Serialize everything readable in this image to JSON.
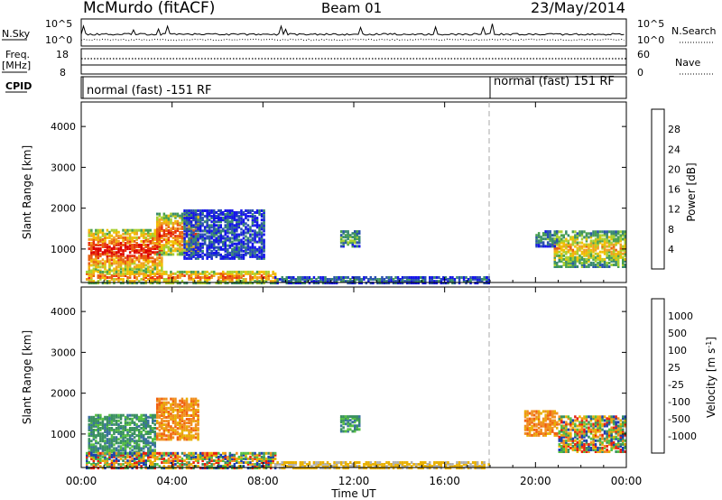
{
  "header": {
    "station": "McMurdo (fitACF)",
    "beam": "Beam 01",
    "date": "23/May/2014"
  },
  "top_panels": {
    "nsky_label": "N.Sky",
    "nsearch_label": "N.Search",
    "nsky_ticks": [
      "10^5",
      "10^0"
    ],
    "nsearch_ticks": [
      "10^5",
      "10^0"
    ],
    "freq_label": "Freq.",
    "freq_units": "[MHz]",
    "freq_ticks": [
      "18",
      "8"
    ],
    "nave_label": "Nave",
    "nave_ticks": [
      "60",
      "0"
    ],
    "cpid_label": "CPID",
    "cpid_segments": [
      {
        "text": "normal (fast) -151 RF",
        "start_hour": 0
      },
      {
        "text": "normal (fast) 151 RF",
        "start_hour": 18
      }
    ]
  },
  "x_axis": {
    "label": "Time UT",
    "ticks": [
      "00:00",
      "04:00",
      "08:00",
      "12:00",
      "16:00",
      "20:00",
      "00:00"
    ],
    "range_hours": [
      0,
      24
    ]
  },
  "chart_data": [
    {
      "type": "heatmap",
      "panel": "power",
      "ylabel": "Slant Range [km]",
      "yticks": [
        "1000",
        "2000",
        "3000",
        "4000"
      ],
      "ylim": [
        180,
        4600
      ],
      "colorbar_label": "Power [dB]",
      "colorbar_ticks": [
        "4",
        "8",
        "12",
        "16",
        "20",
        "24",
        "28"
      ],
      "colorbar_colors": [
        "#1515e8",
        "#2a50b0",
        "#3a8a70",
        "#4aa050",
        "#a8d030",
        "#f0c000",
        "#f0a020",
        "#e86010",
        "#e83010",
        "#dd0000"
      ],
      "regions": [
        {
          "t": [
            0.3,
            3.6
          ],
          "r": [
            500,
            1500
          ],
          "level": 0.85
        },
        {
          "t": [
            3.3,
            5.1
          ],
          "r": [
            900,
            1900
          ],
          "level": 0.75
        },
        {
          "t": [
            0.2,
            8.5
          ],
          "r": [
            200,
            500
          ],
          "level": 0.7
        },
        {
          "t": [
            11.4,
            12.2
          ],
          "r": [
            1100,
            1500
          ],
          "level": 0.35
        },
        {
          "t": [
            20.8,
            24
          ],
          "r": [
            600,
            1500
          ],
          "level": 0.55
        },
        {
          "t": [
            20.0,
            21.0
          ],
          "r": [
            1100,
            1500
          ],
          "level": 0.3
        },
        {
          "t": [
            4.5,
            8.0
          ],
          "r": [
            800,
            2000
          ],
          "level": 0.15
        },
        {
          "t": [
            8.5,
            18
          ],
          "r": [
            200,
            350
          ],
          "level": 0.2
        }
      ]
    },
    {
      "type": "heatmap",
      "panel": "velocity",
      "ylabel": "Slant Range [km]",
      "yticks": [
        "1000",
        "2000",
        "3000",
        "4000"
      ],
      "ylim": [
        180,
        4600
      ],
      "colorbar_label": "Velocity [m s^-1]",
      "colorbar_ticks": [
        "1000",
        "500",
        "100",
        "25",
        "-25",
        "-100",
        "-500",
        "-1000"
      ],
      "colorbar_colors": [
        "#1b3fb0",
        "#3a70a0",
        "#3a9060",
        "#56c040",
        "#b0b0b0",
        "#e8b000",
        "#f09020",
        "#f06010",
        "#e82010"
      ],
      "regions": [
        {
          "t": [
            0.3,
            3.3
          ],
          "r": [
            500,
            1500
          ],
          "vel": "green"
        },
        {
          "t": [
            3.3,
            5.1
          ],
          "r": [
            900,
            1900
          ],
          "vel": "orange"
        },
        {
          "t": [
            0.2,
            8.5
          ],
          "r": [
            200,
            600
          ],
          "vel": "mixed"
        },
        {
          "t": [
            11.4,
            12.2
          ],
          "r": [
            1100,
            1500
          ],
          "vel": "green"
        },
        {
          "t": [
            19.5,
            21.0
          ],
          "r": [
            1000,
            1600
          ],
          "vel": "orange"
        },
        {
          "t": [
            21.0,
            24
          ],
          "r": [
            600,
            1500
          ],
          "vel": "mixed"
        },
        {
          "t": [
            8.5,
            18
          ],
          "r": [
            200,
            350
          ],
          "vel": "yellow"
        }
      ]
    }
  ]
}
